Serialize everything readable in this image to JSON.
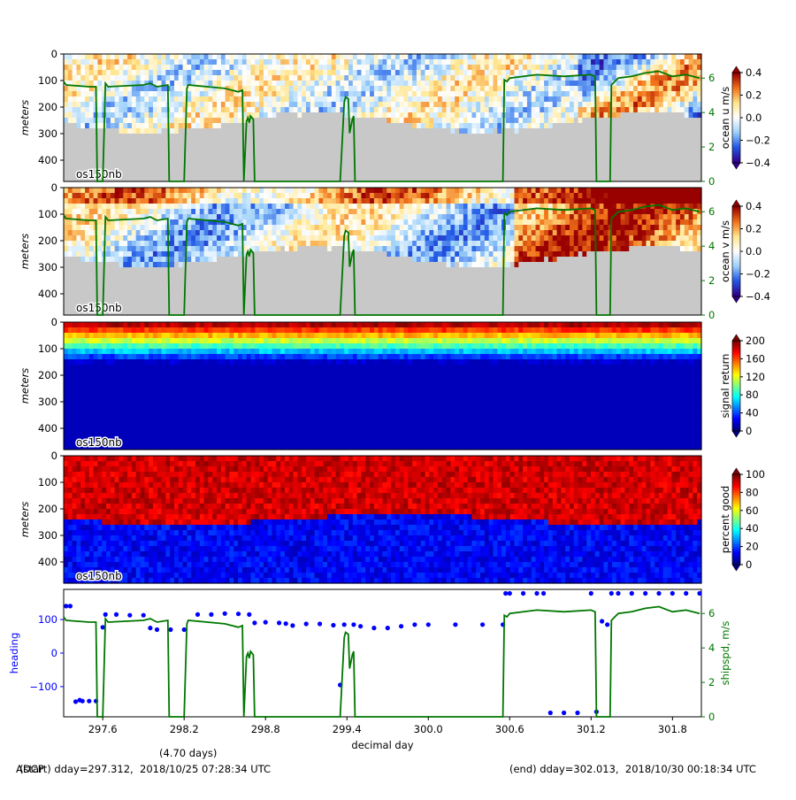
{
  "footer": {
    "left": "(start) dday=297.312,  2018/10/25 07:28:34 UTC",
    "right": "(end) dday=302.013,  2018/10/30 00:18:34 UTC",
    "overlap": "ADCP",
    "duration": "(4.70 days)"
  },
  "chart_data": [
    {
      "type": "heatmap",
      "ylabel": "meters",
      "y_ticks": [
        "0",
        "100",
        "200",
        "300",
        "400"
      ],
      "ylim": [
        480,
        0
      ],
      "instrument_label": "os150nb",
      "colorbar": {
        "label": "ocean u m/s",
        "ticks": [
          "0.4",
          "0.2",
          "0.0",
          "−0.2",
          "−0.4"
        ],
        "range": [
          -0.4,
          0.4
        ]
      },
      "shipspd_axis": {
        "ticks": [
          "6",
          "4",
          "2",
          "0"
        ],
        "color": "#007700"
      },
      "depth_bottom_fraction_note": "grey = no data"
    },
    {
      "type": "heatmap",
      "ylabel": "meters",
      "y_ticks": [
        "0",
        "100",
        "200",
        "300",
        "400"
      ],
      "ylim": [
        480,
        0
      ],
      "instrument_label": "os150nb",
      "colorbar": {
        "label": "ocean v m/s",
        "ticks": [
          "0.4",
          "0.2",
          "0.0",
          "−0.2",
          "−0.4"
        ],
        "range": [
          -0.4,
          0.4
        ]
      },
      "shipspd_axis": {
        "ticks": [
          "6",
          "4",
          "2",
          "0"
        ],
        "color": "#007700"
      }
    },
    {
      "type": "heatmap",
      "ylabel": "meters",
      "y_ticks": [
        "0",
        "100",
        "200",
        "300",
        "400"
      ],
      "ylim": [
        480,
        0
      ],
      "instrument_label": "os150nb",
      "colorbar": {
        "label": "signal return",
        "ticks": [
          "200",
          "160",
          "120",
          "80",
          "40",
          "0"
        ],
        "range": [
          0,
          200
        ]
      }
    },
    {
      "type": "heatmap",
      "ylabel": "meters",
      "y_ticks": [
        "0",
        "100",
        "200",
        "300",
        "400"
      ],
      "ylim": [
        480,
        0
      ],
      "instrument_label": "os150nb",
      "colorbar": {
        "label": "percent good",
        "ticks": [
          "100",
          "80",
          "60",
          "40",
          "20",
          "0"
        ],
        "range": [
          0,
          100
        ]
      }
    },
    {
      "type": "scatter",
      "xlabel": "decimal day",
      "ylabel_left": "heading",
      "ylabel_right": "shipspd, m/s",
      "left_ticks": [
        "100",
        "0",
        "−100"
      ],
      "right_ticks": [
        "6",
        "4",
        "2",
        "0"
      ],
      "x_ticks": [
        "297.6",
        "298.2",
        "298.8",
        "299.4",
        "300.0",
        "300.6",
        "301.2",
        "301.8"
      ],
      "xlim": [
        297.312,
        302.013
      ],
      "heading_color": "#0000ff",
      "shipspd_color": "#007700",
      "shipspd": {
        "x": [
          297.312,
          297.33,
          297.5,
          297.55,
          297.56,
          297.58,
          297.6,
          297.62,
          297.64,
          297.9,
          297.95,
          298.0,
          298.08,
          298.09,
          298.2,
          298.22,
          298.23,
          298.5,
          298.6,
          298.63,
          298.64,
          298.66,
          298.67,
          298.68,
          298.69,
          298.71,
          298.72,
          298.73,
          298.76,
          298.78,
          299.35,
          299.38,
          299.39,
          299.41,
          299.42,
          299.44,
          299.45,
          299.46,
          299.49,
          299.52,
          300.5,
          300.55,
          300.56,
          300.58,
          300.6,
          300.8,
          301.0,
          301.2,
          301.23,
          301.24,
          301.32,
          301.34,
          301.35,
          301.4,
          301.5,
          301.6,
          301.7,
          301.8,
          301.9,
          302.0
        ],
        "values": [
          5.8,
          5.6,
          5.5,
          5.5,
          0.0,
          0.0,
          0.0,
          5.7,
          5.5,
          5.6,
          5.7,
          5.5,
          5.6,
          0.0,
          0.0,
          5.4,
          5.6,
          5.4,
          5.2,
          5.3,
          0.0,
          3.5,
          3.7,
          3.4,
          3.8,
          3.6,
          0.0,
          0.0,
          0.0,
          0.0,
          0.0,
          4.6,
          4.9,
          4.8,
          2.8,
          3.6,
          3.8,
          0.0,
          0.0,
          0.0,
          0.0,
          0.0,
          5.9,
          5.8,
          6.0,
          6.2,
          6.1,
          6.2,
          6.1,
          0.0,
          0.0,
          0.0,
          5.6,
          6.0,
          6.1,
          6.3,
          6.4,
          6.1,
          6.2,
          6.0
        ]
      },
      "heading": {
        "x": [
          297.33,
          297.36,
          297.4,
          297.43,
          297.45,
          297.5,
          297.55,
          297.6,
          297.62,
          297.7,
          297.8,
          297.9,
          297.95,
          298.0,
          298.1,
          298.2,
          298.3,
          298.4,
          298.5,
          298.6,
          298.68,
          298.72,
          298.8,
          298.9,
          298.95,
          299.0,
          299.1,
          299.2,
          299.3,
          299.35,
          299.38,
          299.45,
          299.5,
          299.6,
          299.7,
          299.8,
          299.9,
          300.0,
          300.2,
          300.4,
          300.55,
          300.57,
          300.6,
          300.7,
          300.8,
          300.85,
          300.9,
          301.0,
          301.1,
          301.2,
          301.24,
          301.28,
          301.32,
          301.35,
          301.4,
          301.5,
          301.6,
          301.7,
          301.8,
          301.9,
          302.0
        ],
        "values": [
          140,
          140,
          -145,
          -140,
          -143,
          -143,
          -143,
          77,
          115,
          115,
          113,
          113,
          75,
          70,
          70,
          70,
          115,
          115,
          118,
          117,
          115,
          90,
          92,
          90,
          88,
          82,
          87,
          87,
          83,
          -95,
          85,
          85,
          80,
          75,
          75,
          80,
          85,
          85,
          85,
          85,
          85,
          178,
          178,
          178,
          178,
          178,
          -178,
          -178,
          -178,
          178,
          -175,
          95,
          85,
          178,
          178,
          178,
          178,
          178,
          178,
          178,
          178
        ]
      }
    }
  ]
}
